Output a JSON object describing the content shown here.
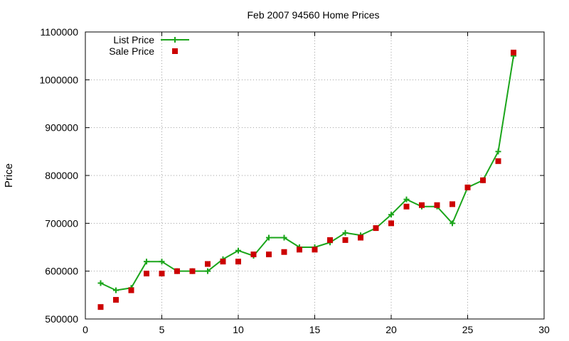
{
  "chart_data": {
    "type": "line",
    "title": "Feb 2007 94560 Home Prices",
    "xlabel": "",
    "ylabel": "Price",
    "xlim": [
      0,
      30
    ],
    "ylim": [
      500000,
      1100000
    ],
    "xticks": [
      0,
      5,
      10,
      15,
      20,
      25,
      30
    ],
    "yticks": [
      500000,
      600000,
      700000,
      800000,
      900000,
      1000000,
      1100000
    ],
    "grid": true,
    "legend_position": "top-left",
    "x": [
      1,
      2,
      3,
      4,
      5,
      6,
      7,
      8,
      9,
      10,
      11,
      12,
      13,
      14,
      15,
      16,
      17,
      18,
      19,
      20,
      21,
      22,
      23,
      24,
      25,
      26,
      27,
      28
    ],
    "series": [
      {
        "name": "List Price",
        "style": "linespoints",
        "marker": "plus",
        "color": "#1aa51a",
        "values": [
          575000,
          560000,
          565000,
          620000,
          620000,
          600000,
          600000,
          600000,
          625000,
          643000,
          632000,
          670000,
          670000,
          650000,
          650000,
          660000,
          680000,
          675000,
          690000,
          718000,
          750000,
          735000,
          735000,
          700000,
          775000,
          790000,
          850000,
          1050000
        ]
      },
      {
        "name": "Sale Price",
        "style": "points",
        "marker": "square",
        "color": "#cc0000",
        "values": [
          525000,
          540000,
          560000,
          595000,
          595000,
          600000,
          600000,
          615000,
          620000,
          620000,
          635000,
          635000,
          640000,
          645000,
          645000,
          665000,
          665000,
          670000,
          690000,
          700000,
          735000,
          738000,
          738000,
          740000,
          775000,
          790000,
          830000,
          1057000
        ]
      }
    ]
  }
}
